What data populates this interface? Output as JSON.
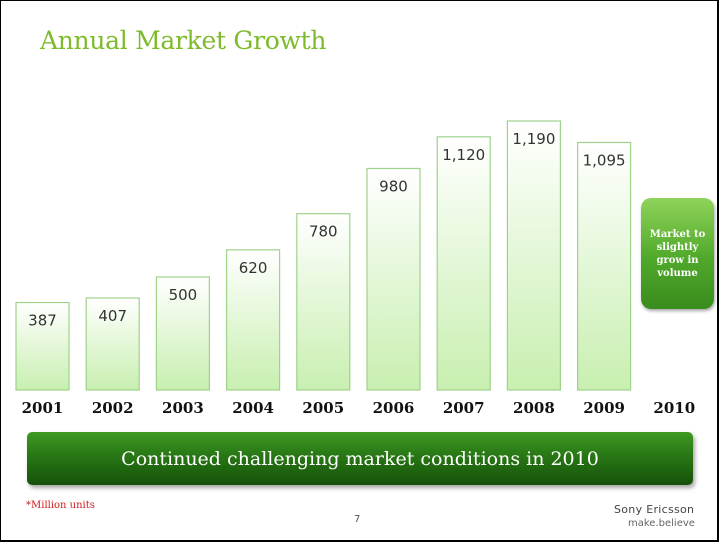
{
  "title": "Annual Market Growth",
  "chart_data": {
    "type": "bar",
    "categories": [
      "2001",
      "2002",
      "2003",
      "2004",
      "2005",
      "2006",
      "2007",
      "2008",
      "2009",
      "2010"
    ],
    "values": [
      387,
      407,
      500,
      620,
      780,
      980,
      1120,
      1190,
      1095,
      null
    ],
    "value_labels": [
      "387",
      "407",
      "500",
      "620",
      "780",
      "980",
      "1,120",
      "1,190",
      "1,095",
      ""
    ],
    "unit_note": "*Million units",
    "ylim": [
      0,
      1190
    ],
    "grid": false,
    "colors": {
      "bar_top": "#ffffff",
      "bar_bottom": "#c8efb0",
      "bar_border": "#9fd38a"
    }
  },
  "callout": {
    "text": "Market to slightly grow in volume",
    "color": "#4fa82a"
  },
  "banner": {
    "text": "Continued challenging market conditions in 2010",
    "color": "#2a7a16"
  },
  "page_number": "7",
  "brand": {
    "name": "Sony Ericsson",
    "tagline": "make.believe"
  }
}
